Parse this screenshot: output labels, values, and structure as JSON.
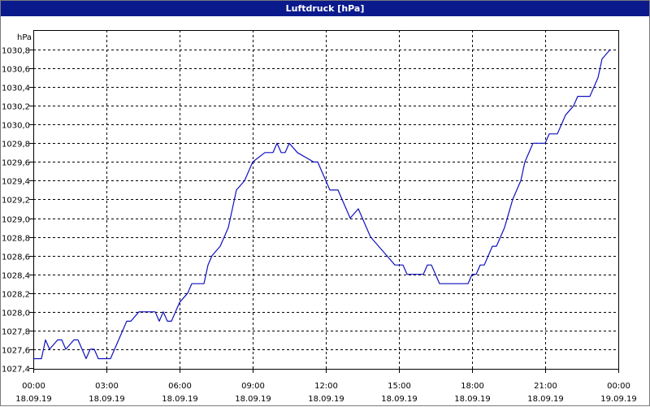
{
  "window": {
    "title": "Luftdruck [hPa]"
  },
  "chart_data": {
    "type": "line",
    "title": "Luftdruck [hPa]",
    "ylabel": "hPa",
    "xlabel": "",
    "ylim": [
      1027.4,
      1030.8
    ],
    "xlim": [
      "18.09.19 00:00",
      "19.09.19 00:00"
    ],
    "grid": true,
    "line_color": "#1010c0",
    "y_ticks": [
      "1027,4",
      "1027,6",
      "1027,8",
      "1028,0",
      "1028,2",
      "1028,4",
      "1028,6",
      "1028,8",
      "1029,0",
      "1029,2",
      "1029,4",
      "1029,6",
      "1029,8",
      "1030,0",
      "1030,2",
      "1030,4",
      "1030,6",
      "1030,8"
    ],
    "x_ticks": [
      {
        "time": "00:00",
        "date": "18.09.19"
      },
      {
        "time": "03:00",
        "date": "18.09.19"
      },
      {
        "time": "06:00",
        "date": "18.09.19"
      },
      {
        "time": "09:00",
        "date": "18.09.19"
      },
      {
        "time": "12:00",
        "date": "18.09.19"
      },
      {
        "time": "15:00",
        "date": "18.09.19"
      },
      {
        "time": "18:00",
        "date": "18.09.19"
      },
      {
        "time": "21:00",
        "date": "18.09.19"
      },
      {
        "time": "00:00",
        "date": "19.09.19"
      }
    ],
    "series": [
      {
        "x": [
          "00:00",
          "00:20",
          "00:30",
          "00:40",
          "01:00",
          "01:10",
          "01:20",
          "01:40",
          "01:50",
          "02:00",
          "02:10",
          "02:20",
          "02:30",
          "02:40",
          "03:10",
          "03:20",
          "03:40",
          "03:50",
          "04:00",
          "04:20",
          "04:50",
          "05:00",
          "05:10",
          "05:20",
          "05:30",
          "05:40",
          "05:50",
          "06:00",
          "06:20",
          "06:30",
          "06:40",
          "07:00",
          "07:10",
          "07:20",
          "07:40",
          "08:00",
          "08:10",
          "08:20",
          "08:40",
          "09:00",
          "09:30",
          "09:40",
          "09:50",
          "10:00",
          "10:10",
          "10:20",
          "10:30",
          "10:50",
          "11:30",
          "11:40",
          "11:50",
          "12:10",
          "12:30",
          "12:40",
          "12:50",
          "13:00",
          "13:20",
          "13:40",
          "13:50",
          "14:10",
          "14:30",
          "14:50",
          "15:10",
          "15:20",
          "15:40",
          "16:00",
          "16:10",
          "16:20",
          "16:40",
          "17:00",
          "17:30",
          "17:50",
          "18:00",
          "18:10",
          "18:20",
          "18:30",
          "18:50",
          "19:00",
          "19:10",
          "19:20",
          "19:40",
          "20:00",
          "20:10",
          "20:30",
          "20:40",
          "20:50",
          "21:00",
          "21:10",
          "21:30",
          "21:40",
          "21:50",
          "22:10",
          "22:20",
          "22:40",
          "22:50",
          "23:00",
          "23:10",
          "23:20",
          "23:40"
        ],
        "values": [
          1027.5,
          1027.5,
          1027.7,
          1027.6,
          1027.7,
          1027.7,
          1027.6,
          1027.7,
          1027.7,
          1027.6,
          1027.5,
          1027.6,
          1027.6,
          1027.5,
          1027.5,
          1027.6,
          1027.8,
          1027.9,
          1027.9,
          1028.0,
          1028.0,
          1028.0,
          1027.9,
          1028.0,
          1027.9,
          1027.9,
          1028.0,
          1028.1,
          1028.2,
          1028.3,
          1028.3,
          1028.3,
          1028.5,
          1028.6,
          1028.7,
          1028.9,
          1029.1,
          1029.3,
          1029.4,
          1029.6,
          1029.7,
          1029.7,
          1029.7,
          1029.8,
          1029.7,
          1029.7,
          1029.8,
          1029.7,
          1029.6,
          1029.6,
          1029.5,
          1029.3,
          1029.3,
          1029.2,
          1029.1,
          1029.0,
          1029.1,
          1028.9,
          1028.8,
          1028.7,
          1028.6,
          1028.5,
          1028.5,
          1028.4,
          1028.4,
          1028.4,
          1028.5,
          1028.5,
          1028.3,
          1028.3,
          1028.3,
          1028.3,
          1028.4,
          1028.4,
          1028.5,
          1028.5,
          1028.7,
          1028.7,
          1028.8,
          1028.9,
          1029.2,
          1029.4,
          1029.6,
          1029.8,
          1029.8,
          1029.8,
          1029.8,
          1029.9,
          1029.9,
          1030.0,
          1030.1,
          1030.2,
          1030.3,
          1030.3,
          1030.3,
          1030.4,
          1030.5,
          1030.7,
          1030.8
        ]
      }
    ]
  }
}
